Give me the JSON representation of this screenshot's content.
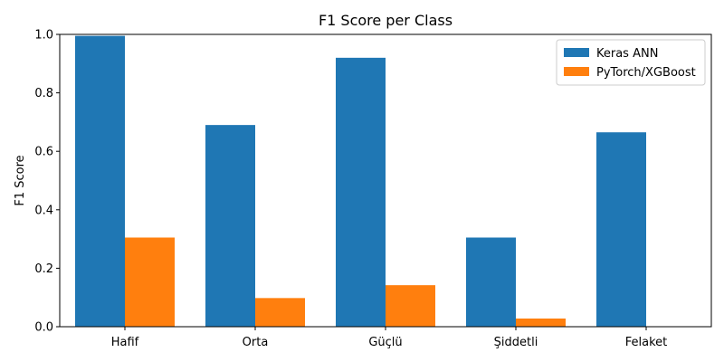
{
  "chart_data": {
    "type": "bar",
    "title": "F1 Score per Class",
    "xlabel": "",
    "ylabel": "F1 Score",
    "categories": [
      "Hafif",
      "Orta",
      "Güçlü",
      "Şiddetli",
      "Felaket"
    ],
    "series": [
      {
        "name": "Keras ANN",
        "color": "#1f77b4",
        "values": [
          0.995,
          0.69,
          0.92,
          0.305,
          0.665
        ]
      },
      {
        "name": "PyTorch/XGBoost",
        "color": "#ff7f0e",
        "values": [
          0.305,
          0.098,
          0.142,
          0.028,
          0.0
        ]
      }
    ],
    "ylim": [
      0,
      1
    ],
    "yticks": [
      "0.0",
      "0.2",
      "0.4",
      "0.6",
      "0.8",
      "1.0"
    ],
    "grid": false,
    "legend_position": "top-right"
  }
}
